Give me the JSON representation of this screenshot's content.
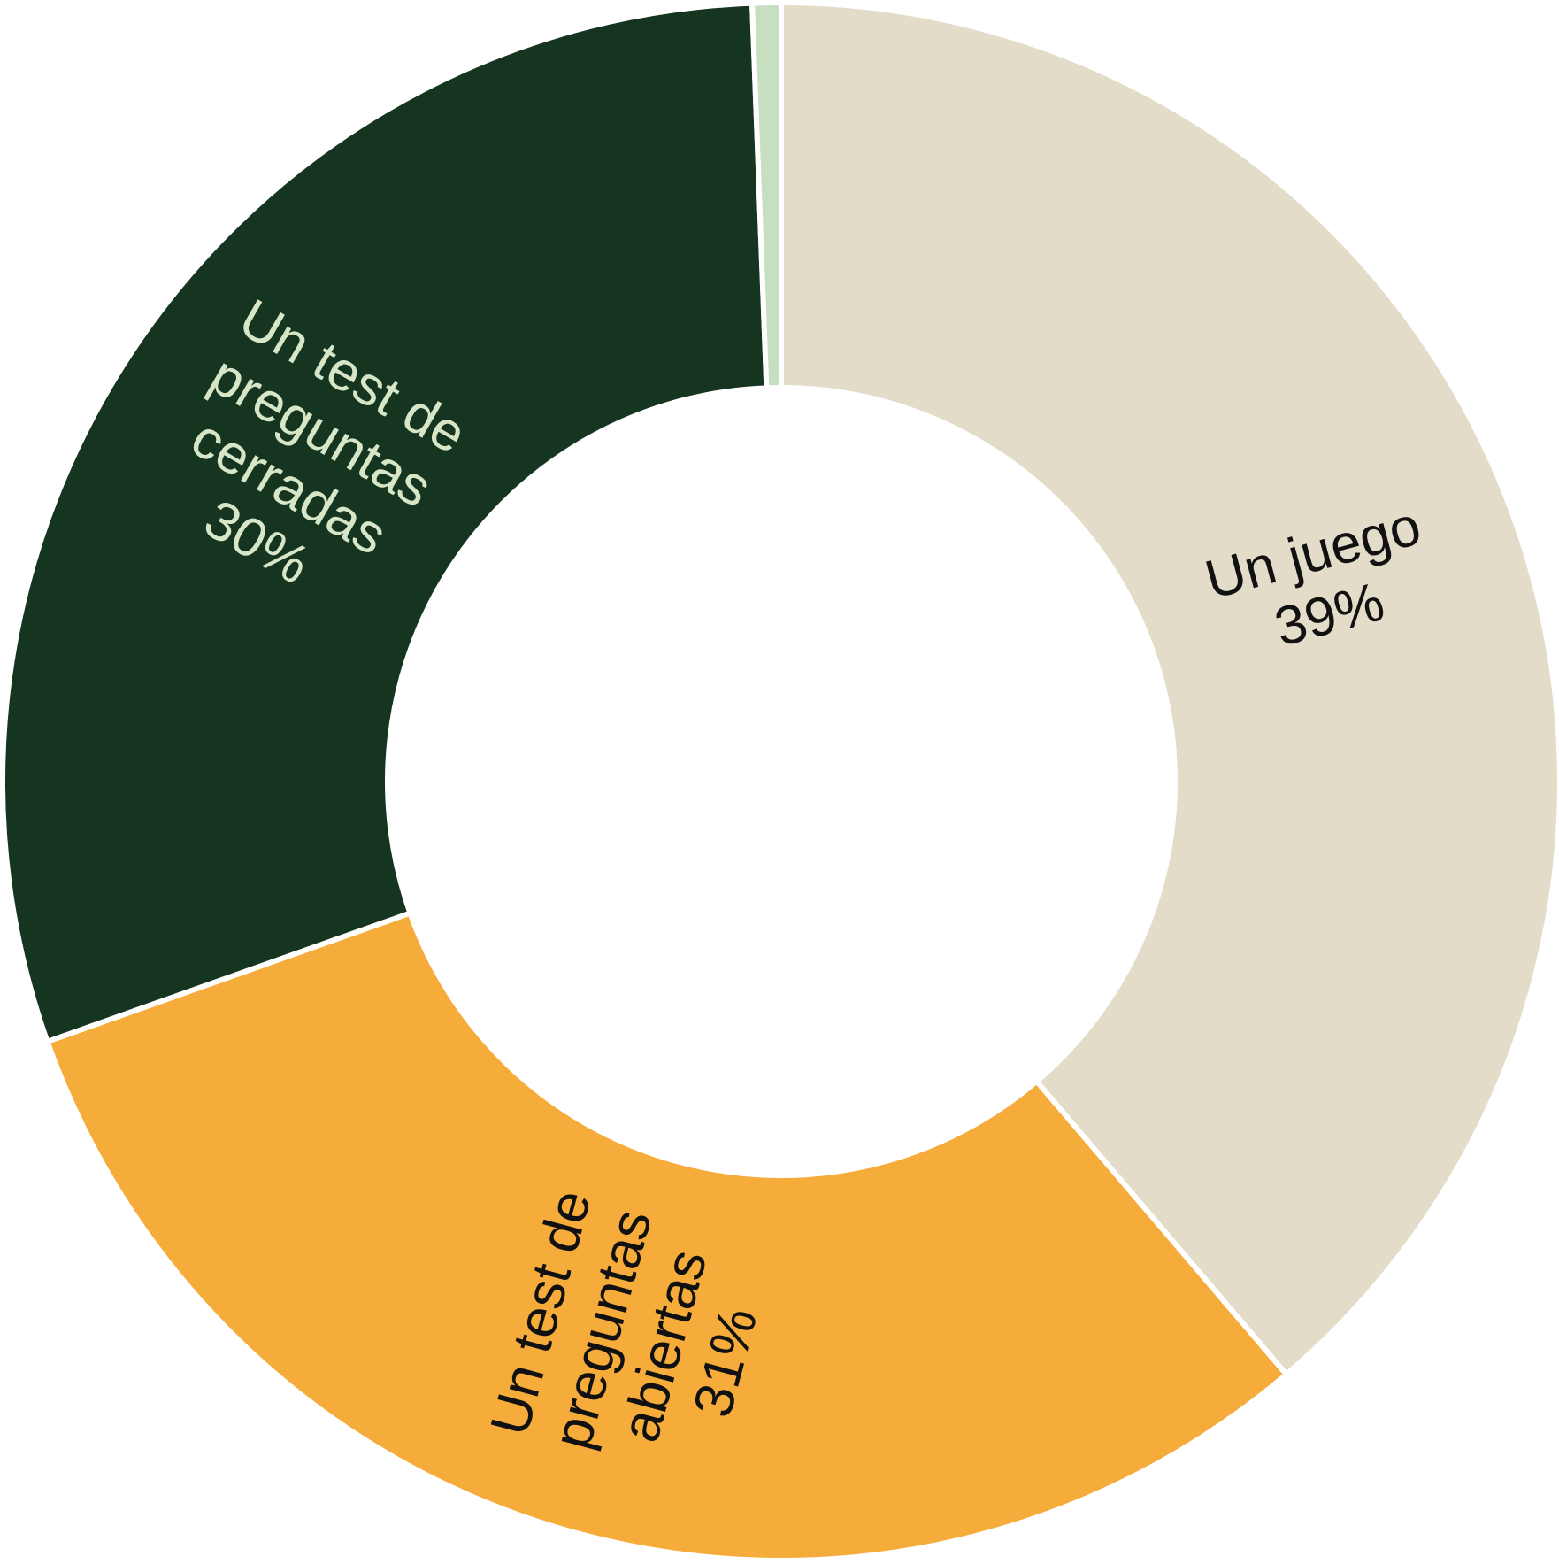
{
  "chart_data": {
    "type": "pie",
    "donut": true,
    "slices": [
      {
        "label_lines": [
          "Un juego",
          "39%"
        ],
        "value": 39,
        "color": "#e3dcc9",
        "text_color": "#111111"
      },
      {
        "label_lines": [
          "Un test de",
          "preguntas",
          "abiertas",
          "31%"
        ],
        "value": 31,
        "color": "#f6ac3b",
        "text_color": "#111111"
      },
      {
        "label_lines": [
          "Un test de",
          "preguntas",
          "cerradas",
          "30%"
        ],
        "value": 30,
        "color": "#153520",
        "text_color": "#d7e6c7"
      },
      {
        "label_lines": [],
        "value": 0.6,
        "color": "#c6dfc0",
        "text_color": "#111111"
      }
    ]
  }
}
